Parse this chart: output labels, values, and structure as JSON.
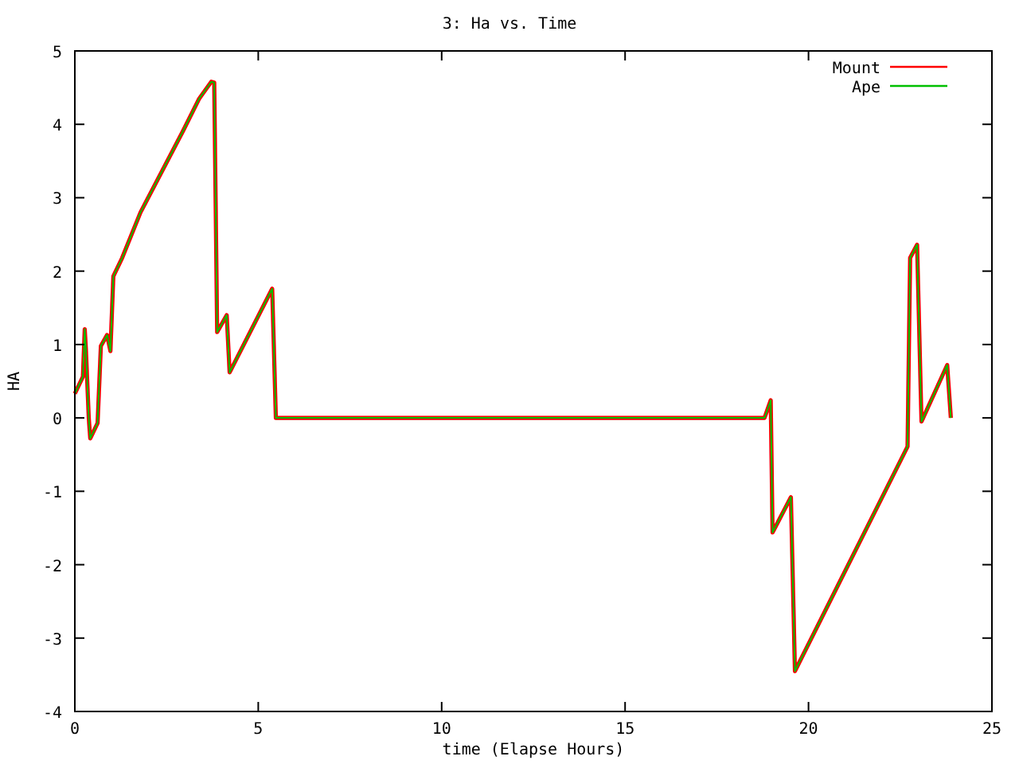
{
  "chart_data": {
    "type": "line",
    "title": "3: Ha vs. Time",
    "xlabel": "time (Elapse Hours)",
    "ylabel": "HA",
    "xlim": [
      0,
      25
    ],
    "xticks": [
      0,
      5,
      10,
      15,
      20,
      25
    ],
    "ylim": [
      -4,
      5
    ],
    "yticks": [
      -4,
      -3,
      -2,
      -1,
      0,
      1,
      2,
      3,
      4,
      5
    ],
    "grid": false,
    "legend": "top right",
    "series": [
      {
        "name": "Mount",
        "color": "#ff0000",
        "x": [
          0,
          0.22,
          0.27,
          0.3,
          0.38,
          0.42,
          0.62,
          0.71,
          0.88,
          0.97,
          1.05,
          1.29,
          1.79,
          2.95,
          3.39,
          3.72,
          3.8,
          3.88,
          4.14,
          4.22,
          5.38,
          5.48,
          18.8,
          18.97,
          19.02,
          19.52,
          19.63,
          22.7,
          22.77,
          22.96,
          23.08,
          23.78,
          23.88
        ],
        "values": [
          0.33,
          0.56,
          1.21,
          0.95,
          0,
          -0.28,
          -0.07,
          0.98,
          1.13,
          0.91,
          1.93,
          2.18,
          2.8,
          3.91,
          4.35,
          4.58,
          4.57,
          1.17,
          1.4,
          0.62,
          1.76,
          0,
          0,
          0.24,
          -1.56,
          -1.08,
          -3.45,
          -0.39,
          2.18,
          2.36,
          -0.05,
          0.72,
          0
        ]
      },
      {
        "name": "Ape",
        "color": "#00c000",
        "x": [
          0,
          0.22,
          0.27,
          0.3,
          0.38,
          0.42,
          0.62,
          0.71,
          0.88,
          0.97,
          1.05,
          1.29,
          1.79,
          2.95,
          3.39,
          3.72,
          3.8,
          3.88,
          4.14,
          4.22,
          5.38,
          5.48,
          18.8,
          18.97,
          19.02,
          19.52,
          19.63,
          22.7,
          22.77,
          22.96,
          23.08,
          23.78,
          23.88
        ],
        "values": [
          0.33,
          0.56,
          1.21,
          0.95,
          0,
          -0.28,
          -0.07,
          0.98,
          1.13,
          0.91,
          1.93,
          2.18,
          2.8,
          3.91,
          4.35,
          4.58,
          4.57,
          1.17,
          1.4,
          0.62,
          1.76,
          0,
          0,
          0.24,
          -1.56,
          -1.08,
          -3.45,
          -0.39,
          2.18,
          2.36,
          -0.05,
          0.72,
          0
        ]
      }
    ]
  }
}
